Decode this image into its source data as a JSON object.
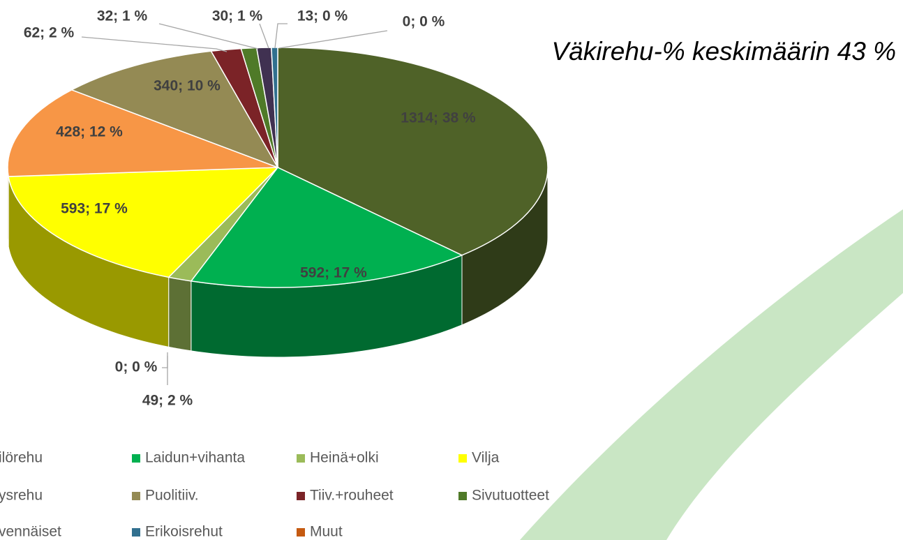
{
  "chart_data": {
    "type": "pie3d",
    "annotation": "Väkirehu-% keskimäärin 43 %",
    "categories": [
      "ilörehu",
      "Laidun+vihanta",
      null,
      "Heinä+olki",
      "Vilja",
      "ysrehu",
      "Puolitiiv.",
      "Tiiv.+rouheet",
      "Sivutuotteet",
      "vennäiset",
      "Erikoisrehut",
      "Muut"
    ],
    "values": [
      1314,
      592,
      0,
      49,
      593,
      428,
      340,
      62,
      32,
      30,
      13,
      0
    ],
    "value_labels": [
      "1314; 38 %",
      "592; 17 %",
      "0; 0 %",
      "49; 2 %",
      "593; 17 %",
      "428; 12 %",
      "340; 10 %",
      "62; 2 %",
      "32; 1 %",
      "30; 1 %",
      "13; 0 %",
      "0; 0 %"
    ],
    "colors": [
      "#4f6228",
      "#00b050",
      "#7f7f7f",
      "#9bbb59",
      "#ffff00",
      "#f79646",
      "#948a54",
      "#7b2327",
      "#4f7a28",
      "#403151",
      "#31708f",
      "#c55a11"
    ],
    "legend": "bottom"
  }
}
